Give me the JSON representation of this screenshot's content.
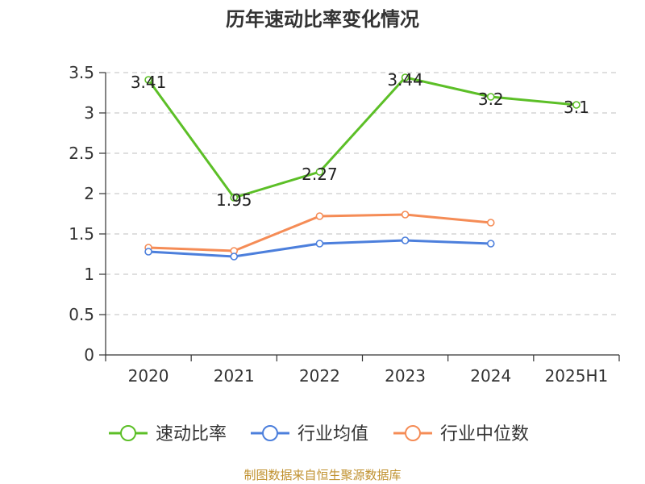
{
  "chart_data": {
    "type": "line",
    "title": "历年速动比率变化情况",
    "categories": [
      "2020",
      "2021",
      "2022",
      "2023",
      "2024",
      "2025H1"
    ],
    "ylim": [
      0,
      3.5
    ],
    "yticks": [
      "0",
      "0.5",
      "1",
      "1.5",
      "2",
      "2.5",
      "3",
      "3.5"
    ],
    "grid": true,
    "legend_position": "bottom",
    "series": [
      {
        "name": "速动比率",
        "color": "#5cbf27",
        "values": [
          3.41,
          1.95,
          2.27,
          3.44,
          3.2,
          3.1
        ],
        "labels": [
          "3.41",
          "1.95",
          "2.27",
          "3.44",
          "3.2",
          "3.1"
        ]
      },
      {
        "name": "行业均值",
        "color": "#4c7fdc",
        "values": [
          1.28,
          1.22,
          1.38,
          1.42,
          1.38,
          null
        ]
      },
      {
        "name": "行业中位数",
        "color": "#f58c56",
        "values": [
          1.33,
          1.29,
          1.72,
          1.74,
          1.64,
          null
        ]
      }
    ],
    "source": "制图数据来自恒生聚源数据库"
  }
}
